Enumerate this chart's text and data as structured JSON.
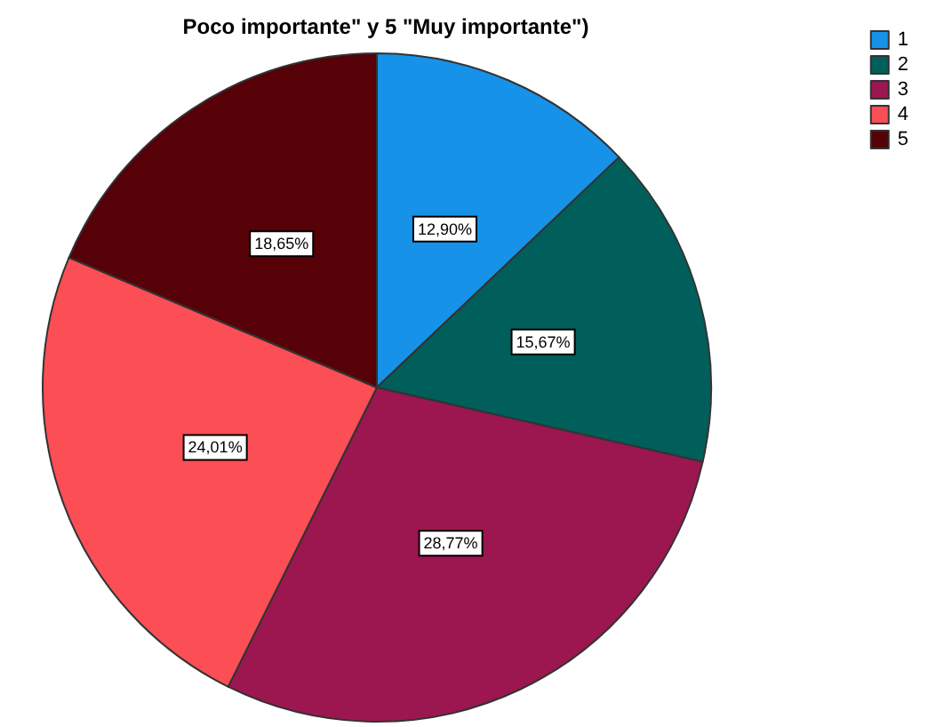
{
  "chart_data": {
    "type": "pie",
    "title": "Poco importante\" y 5 \"Muy importante\")",
    "categories": [
      "1",
      "2",
      "3",
      "4",
      "5"
    ],
    "values": [
      12.9,
      15.67,
      28.77,
      24.01,
      18.65
    ],
    "value_labels": [
      "12,90%",
      "15,67%",
      "28,77%",
      "24,01%",
      "18,65%"
    ],
    "colors": [
      "#1692e8",
      "#005f5a",
      "#9c1650",
      "#fc4e55",
      "#560008"
    ],
    "legend": "top right"
  }
}
